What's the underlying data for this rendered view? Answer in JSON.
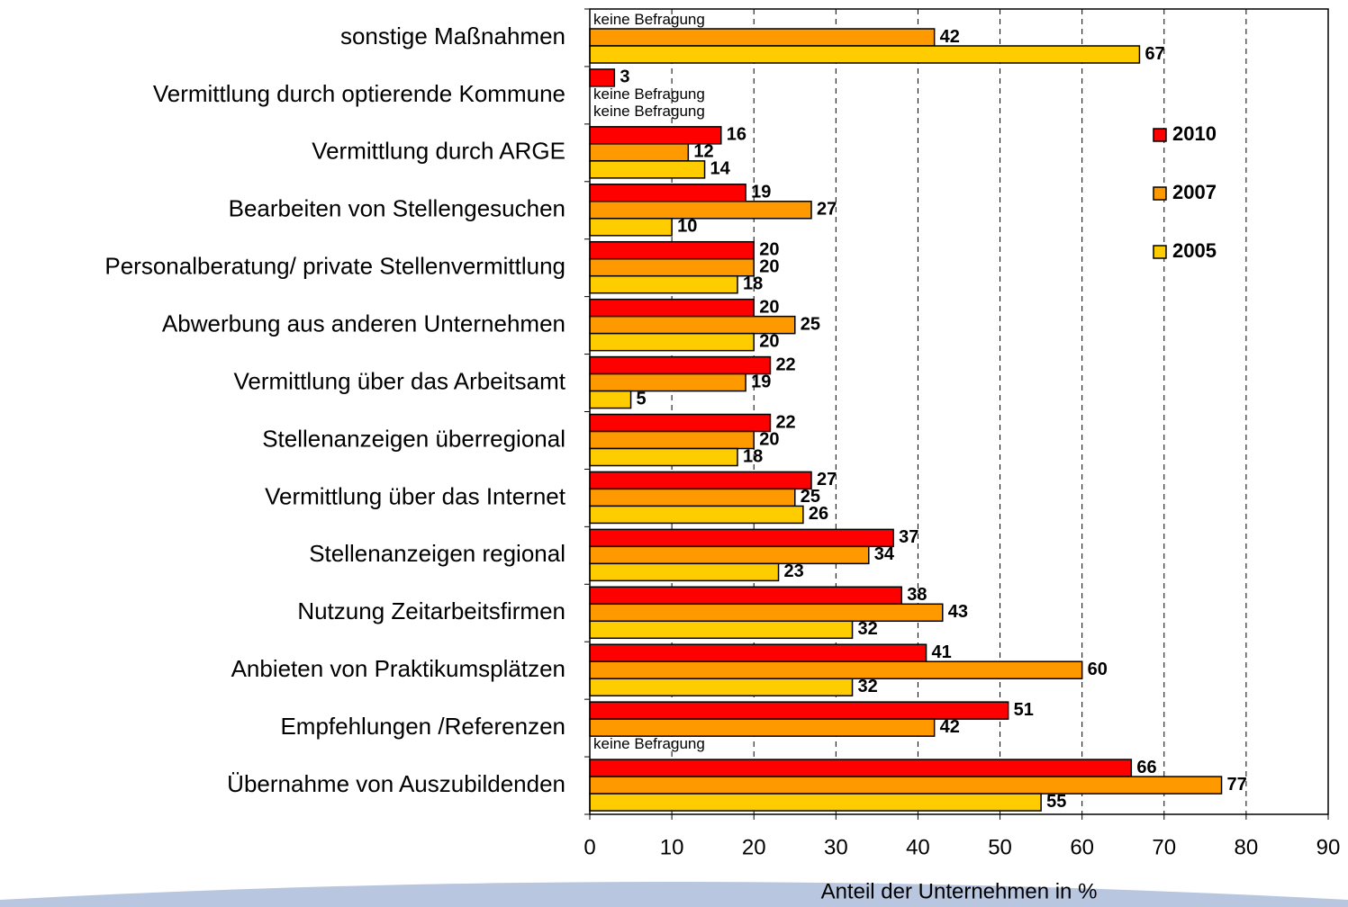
{
  "chart_data": {
    "type": "bar",
    "orientation": "horizontal",
    "xlabel": "Anteil der Unternehmen in %",
    "categories": [
      "sonstige Maßnahmen",
      "Vermittlung durch optierende Kommune",
      "Vermittlung durch ARGE",
      "Bearbeiten von Stellengesuchen",
      "Personalberatung/ private Stellenvermittlung",
      "Abwerbung aus anderen Unternehmen",
      "Vermittlung über das Arbeitsamt",
      "Stellenanzeigen überregional",
      "Vermittlung über das Internet",
      "Stellenanzeigen regional",
      "Nutzung Zeitarbeitsfirmen",
      "Anbieten von Praktikumsplätzen",
      "Empfehlungen /Referenzen",
      "Übernahme von Auszubildenden"
    ],
    "series": [
      {
        "name": "2010",
        "color": "#ff0000",
        "values": [
          null,
          3,
          16,
          19,
          20,
          20,
          22,
          22,
          27,
          37,
          38,
          41,
          51,
          66
        ],
        "value_labels": [
          "keine Befragung",
          null,
          null,
          null,
          null,
          null,
          null,
          null,
          null,
          null,
          null,
          null,
          null,
          null
        ]
      },
      {
        "name": "2007",
        "color": "#ff9900",
        "values": [
          42,
          null,
          12,
          27,
          20,
          25,
          19,
          20,
          25,
          34,
          43,
          60,
          42,
          77
        ],
        "value_labels": [
          null,
          "keine Befragung",
          null,
          null,
          null,
          null,
          null,
          null,
          null,
          null,
          null,
          null,
          null,
          null
        ]
      },
      {
        "name": "2005",
        "color": "#ffcc00",
        "values": [
          67,
          null,
          14,
          10,
          18,
          20,
          5,
          18,
          26,
          23,
          32,
          32,
          null,
          55
        ],
        "value_labels": [
          null,
          "keine Befragung",
          null,
          null,
          null,
          null,
          null,
          null,
          null,
          null,
          null,
          null,
          "keine Befragung",
          null
        ]
      }
    ],
    "xlim": [
      0,
      90
    ],
    "xticks": [
      0,
      10,
      20,
      30,
      40,
      50,
      60,
      70,
      80,
      90
    ],
    "grid": true,
    "legend": "right"
  }
}
